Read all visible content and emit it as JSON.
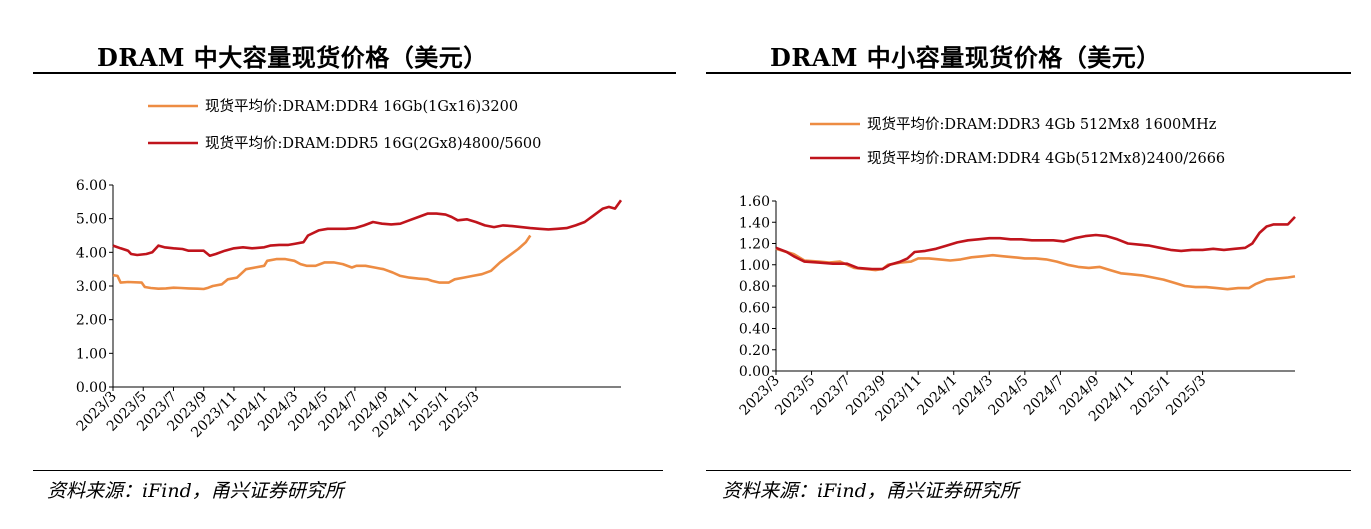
{
  "colors": {
    "orange": "#ED8C43",
    "red": "#C0141C",
    "axis": "#000000"
  },
  "charts": [
    {
      "title": "DRAM 中大容量现货价格（美元）",
      "source": "资料来源：iFind，甬兴证券研究所",
      "chart_data": {
        "type": "line",
        "title": "DRAM 中大容量现货价格（美元）",
        "xlabel": "",
        "ylabel": "",
        "ylim": [
          0,
          6
        ],
        "yticks": [
          "0.00",
          "1.00",
          "2.00",
          "3.00",
          "4.00",
          "5.00",
          "6.00"
        ],
        "xticks": [
          "2023/3",
          "2023/5",
          "2023/7",
          "2023/9",
          "2023/11",
          "2024/1",
          "2024/3",
          "2024/5",
          "2024/7",
          "2024/9",
          "2024/11",
          "2025/1",
          "2025/3"
        ],
        "grid": false,
        "legend": "top-left",
        "series": [
          {
            "name": "现货平均价:DRAM:DDR4 16Gb(1Gx16)3200",
            "color": "orange",
            "points": [
              [
                0,
                3.32
              ],
              [
                0.3,
                3.3
              ],
              [
                0.5,
                3.1
              ],
              [
                1.0,
                3.12
              ],
              [
                1.9,
                3.1
              ],
              [
                2.1,
                2.97
              ],
              [
                2.5,
                2.94
              ],
              [
                3.0,
                2.92
              ],
              [
                3.5,
                2.93
              ],
              [
                4.0,
                2.95
              ],
              [
                4.5,
                2.94
              ],
              [
                5.0,
                2.93
              ],
              [
                5.6,
                2.92
              ],
              [
                6.0,
                2.91
              ],
              [
                6.3,
                2.95
              ],
              [
                6.6,
                3.0
              ],
              [
                7.2,
                3.05
              ],
              [
                7.6,
                3.2
              ],
              [
                8.2,
                3.25
              ],
              [
                8.8,
                3.5
              ],
              [
                9.4,
                3.55
              ],
              [
                10.0,
                3.6
              ],
              [
                10.2,
                3.75
              ],
              [
                10.8,
                3.8
              ],
              [
                11.4,
                3.8
              ],
              [
                12.0,
                3.75
              ],
              [
                12.4,
                3.65
              ],
              [
                12.8,
                3.6
              ],
              [
                13.4,
                3.6
              ],
              [
                14.0,
                3.7
              ],
              [
                14.6,
                3.7
              ],
              [
                15.2,
                3.65
              ],
              [
                15.8,
                3.55
              ],
              [
                16.1,
                3.6
              ],
              [
                16.7,
                3.6
              ],
              [
                17.3,
                3.55
              ],
              [
                17.9,
                3.5
              ],
              [
                18.5,
                3.4
              ],
              [
                19.0,
                3.3
              ],
              [
                19.6,
                3.25
              ],
              [
                20.2,
                3.22
              ],
              [
                20.8,
                3.2
              ],
              [
                21.1,
                3.15
              ],
              [
                21.6,
                3.1
              ],
              [
                22.2,
                3.1
              ],
              [
                22.6,
                3.2
              ],
              [
                23.2,
                3.25
              ],
              [
                23.8,
                3.3
              ],
              [
                24.4,
                3.35
              ],
              [
                25.0,
                3.45
              ],
              [
                25.6,
                3.7
              ],
              [
                26.2,
                3.9
              ],
              [
                26.8,
                4.1
              ],
              [
                27.3,
                4.3
              ],
              [
                27.6,
                4.5
              ]
            ]
          },
          {
            "name": "现货平均价:DRAM:DDR5 16G(2Gx8)4800/5600",
            "color": "red",
            "points": [
              [
                0,
                4.2
              ],
              [
                0.5,
                4.12
              ],
              [
                1.0,
                4.05
              ],
              [
                1.2,
                3.95
              ],
              [
                1.6,
                3.92
              ],
              [
                2.2,
                3.95
              ],
              [
                2.6,
                4.0
              ],
              [
                3.0,
                4.2
              ],
              [
                3.4,
                4.15
              ],
              [
                4.0,
                4.12
              ],
              [
                4.6,
                4.1
              ],
              [
                5.0,
                4.05
              ],
              [
                5.6,
                4.05
              ],
              [
                6.0,
                4.05
              ],
              [
                6.4,
                3.9
              ],
              [
                6.8,
                3.95
              ],
              [
                7.4,
                4.05
              ],
              [
                8.0,
                4.12
              ],
              [
                8.6,
                4.15
              ],
              [
                9.2,
                4.12
              ],
              [
                10.0,
                4.15
              ],
              [
                10.4,
                4.2
              ],
              [
                11.0,
                4.22
              ],
              [
                11.6,
                4.22
              ],
              [
                12.0,
                4.25
              ],
              [
                12.6,
                4.3
              ],
              [
                12.9,
                4.5
              ],
              [
                13.6,
                4.65
              ],
              [
                14.2,
                4.7
              ],
              [
                14.8,
                4.7
              ],
              [
                15.4,
                4.7
              ],
              [
                16.0,
                4.72
              ],
              [
                16.6,
                4.8
              ],
              [
                17.2,
                4.9
              ],
              [
                17.8,
                4.85
              ],
              [
                18.4,
                4.83
              ],
              [
                19.0,
                4.85
              ],
              [
                19.6,
                4.95
              ],
              [
                20.2,
                5.05
              ],
              [
                20.8,
                5.15
              ],
              [
                21.4,
                5.15
              ],
              [
                22.0,
                5.12
              ],
              [
                22.4,
                5.05
              ],
              [
                22.8,
                4.95
              ],
              [
                23.4,
                4.98
              ],
              [
                24.0,
                4.9
              ],
              [
                24.6,
                4.8
              ],
              [
                25.2,
                4.75
              ],
              [
                25.8,
                4.8
              ],
              [
                26.4,
                4.78
              ],
              [
                27.0,
                4.75
              ],
              [
                27.6,
                4.72
              ],
              [
                28.2,
                4.7
              ],
              [
                28.8,
                4.68
              ],
              [
                29.4,
                4.7
              ],
              [
                30.0,
                4.72
              ],
              [
                30.6,
                4.8
              ],
              [
                31.2,
                4.9
              ],
              [
                31.8,
                5.1
              ],
              [
                32.4,
                5.3
              ],
              [
                32.8,
                5.35
              ],
              [
                33.2,
                5.3
              ],
              [
                33.6,
                5.55
              ]
            ]
          }
        ]
      }
    },
    {
      "title": "DRAM 中小容量现货价格（美元）",
      "source": "资料来源：iFind，甬兴证券研究所",
      "chart_data": {
        "type": "line",
        "title": "DRAM 中小容量现货价格（美元）",
        "xlabel": "",
        "ylabel": "",
        "ylim": [
          0,
          1.6
        ],
        "yticks": [
          "0.00",
          "0.20",
          "0.40",
          "0.60",
          "0.80",
          "1.00",
          "1.20",
          "1.40",
          "1.60"
        ],
        "xticks": [
          "2023/3",
          "2023/5",
          "2023/7",
          "2023/9",
          "2023/11",
          "2024/1",
          "2024/3",
          "2024/5",
          "2024/7",
          "2024/9",
          "2024/11",
          "2025/1",
          "2025/3"
        ],
        "grid": false,
        "legend": "top-left",
        "series": [
          {
            "name": "现货平均价:DRAM:DDR3 4Gb 512Mx8 1600MHz",
            "color": "orange",
            "points": [
              [
                0,
                1.15
              ],
              [
                1.0,
                1.1
              ],
              [
                1.6,
                1.04
              ],
              [
                2.4,
                1.03
              ],
              [
                3.0,
                1.02
              ],
              [
                3.6,
                1.03
              ],
              [
                4.0,
                1.0
              ],
              [
                4.4,
                0.97
              ],
              [
                5.0,
                0.96
              ],
              [
                5.6,
                0.95
              ],
              [
                6.0,
                0.96
              ],
              [
                6.3,
                1.0
              ],
              [
                7.0,
                1.02
              ],
              [
                7.6,
                1.03
              ],
              [
                8.0,
                1.06
              ],
              [
                8.6,
                1.06
              ],
              [
                9.2,
                1.05
              ],
              [
                9.8,
                1.04
              ],
              [
                10.4,
                1.05
              ],
              [
                11.0,
                1.07
              ],
              [
                11.6,
                1.08
              ],
              [
                12.2,
                1.09
              ],
              [
                12.8,
                1.08
              ],
              [
                13.4,
                1.07
              ],
              [
                14.0,
                1.06
              ],
              [
                14.6,
                1.06
              ],
              [
                15.2,
                1.05
              ],
              [
                15.8,
                1.03
              ],
              [
                16.4,
                1.0
              ],
              [
                17.0,
                0.98
              ],
              [
                17.6,
                0.97
              ],
              [
                18.2,
                0.98
              ],
              [
                18.8,
                0.95
              ],
              [
                19.4,
                0.92
              ],
              [
                20.0,
                0.91
              ],
              [
                20.6,
                0.9
              ],
              [
                21.2,
                0.88
              ],
              [
                21.8,
                0.86
              ],
              [
                22.4,
                0.83
              ],
              [
                23.0,
                0.8
              ],
              [
                23.6,
                0.79
              ],
              [
                24.2,
                0.79
              ],
              [
                24.8,
                0.78
              ],
              [
                25.4,
                0.77
              ],
              [
                26.0,
                0.78
              ],
              [
                26.6,
                0.78
              ],
              [
                27.0,
                0.82
              ],
              [
                27.6,
                0.86
              ],
              [
                28.2,
                0.87
              ],
              [
                28.8,
                0.88
              ],
              [
                29.2,
                0.89
              ]
            ]
          },
          {
            "name": "现货平均价:DRAM:DDR4 4Gb(512Mx8)2400/2666",
            "color": "red",
            "points": [
              [
                0,
                1.16
              ],
              [
                0.6,
                1.12
              ],
              [
                1.0,
                1.08
              ],
              [
                1.6,
                1.03
              ],
              [
                2.4,
                1.02
              ],
              [
                3.2,
                1.01
              ],
              [
                4.0,
                1.01
              ],
              [
                4.6,
                0.97
              ],
              [
                5.4,
                0.96
              ],
              [
                6.0,
                0.96
              ],
              [
                6.4,
                1.0
              ],
              [
                7.0,
                1.03
              ],
              [
                7.4,
                1.06
              ],
              [
                7.8,
                1.12
              ],
              [
                8.4,
                1.13
              ],
              [
                9.0,
                1.15
              ],
              [
                9.6,
                1.18
              ],
              [
                10.2,
                1.21
              ],
              [
                10.8,
                1.23
              ],
              [
                11.4,
                1.24
              ],
              [
                12.0,
                1.25
              ],
              [
                12.6,
                1.25
              ],
              [
                13.2,
                1.24
              ],
              [
                13.8,
                1.24
              ],
              [
                14.4,
                1.23
              ],
              [
                15.0,
                1.23
              ],
              [
                15.6,
                1.23
              ],
              [
                16.2,
                1.22
              ],
              [
                16.8,
                1.25
              ],
              [
                17.4,
                1.27
              ],
              [
                18.0,
                1.28
              ],
              [
                18.6,
                1.27
              ],
              [
                19.2,
                1.24
              ],
              [
                19.8,
                1.2
              ],
              [
                20.4,
                1.19
              ],
              [
                21.0,
                1.18
              ],
              [
                21.6,
                1.16
              ],
              [
                22.2,
                1.14
              ],
              [
                22.8,
                1.13
              ],
              [
                23.4,
                1.14
              ],
              [
                24.0,
                1.14
              ],
              [
                24.6,
                1.15
              ],
              [
                25.2,
                1.14
              ],
              [
                25.8,
                1.15
              ],
              [
                26.4,
                1.16
              ],
              [
                26.8,
                1.2
              ],
              [
                27.2,
                1.3
              ],
              [
                27.6,
                1.36
              ],
              [
                28.0,
                1.38
              ],
              [
                28.4,
                1.38
              ],
              [
                28.8,
                1.38
              ],
              [
                29.2,
                1.45
              ]
            ]
          }
        ]
      }
    }
  ]
}
